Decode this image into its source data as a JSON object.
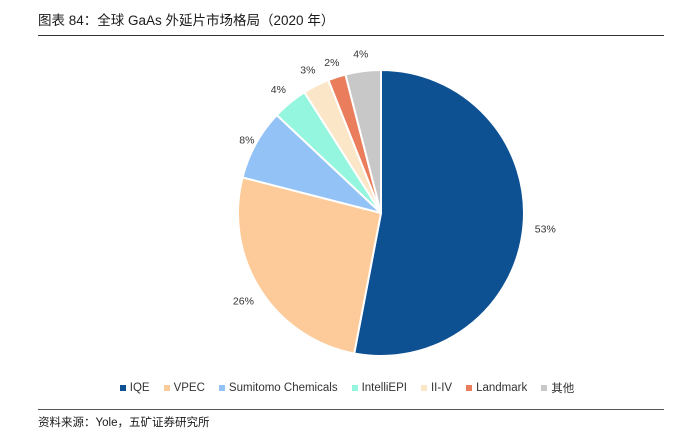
{
  "header": {
    "title": "图表 84：全球 GaAs 外延片市场格局（2020 年）"
  },
  "footer": {
    "source": "资料来源：Yole，五矿证券研究所"
  },
  "chart_data": {
    "type": "pie",
    "title": "图表 84：全球 GaAs 外延片市场格局（2020 年）",
    "slices": [
      {
        "label": "IQE",
        "value": 53,
        "display": "53%",
        "color": "#0e5193"
      },
      {
        "label": "VPEC",
        "value": 26,
        "display": "26%",
        "color": "#fdca99"
      },
      {
        "label": "Sumitomo Chemicals",
        "value": 8,
        "display": "8%",
        "color": "#92c2f6"
      },
      {
        "label": "IntelliEPI",
        "value": 4,
        "display": "4%",
        "color": "#94f6df"
      },
      {
        "label": "II-IV",
        "value": 3,
        "display": "3%",
        "color": "#fbe6c8"
      },
      {
        "label": "Landmark",
        "value": 2,
        "display": "2%",
        "color": "#ea7e5c"
      },
      {
        "label": "其他",
        "value": 4,
        "display": "4%",
        "color": "#c8c8c8"
      }
    ],
    "legend_position": "bottom"
  }
}
